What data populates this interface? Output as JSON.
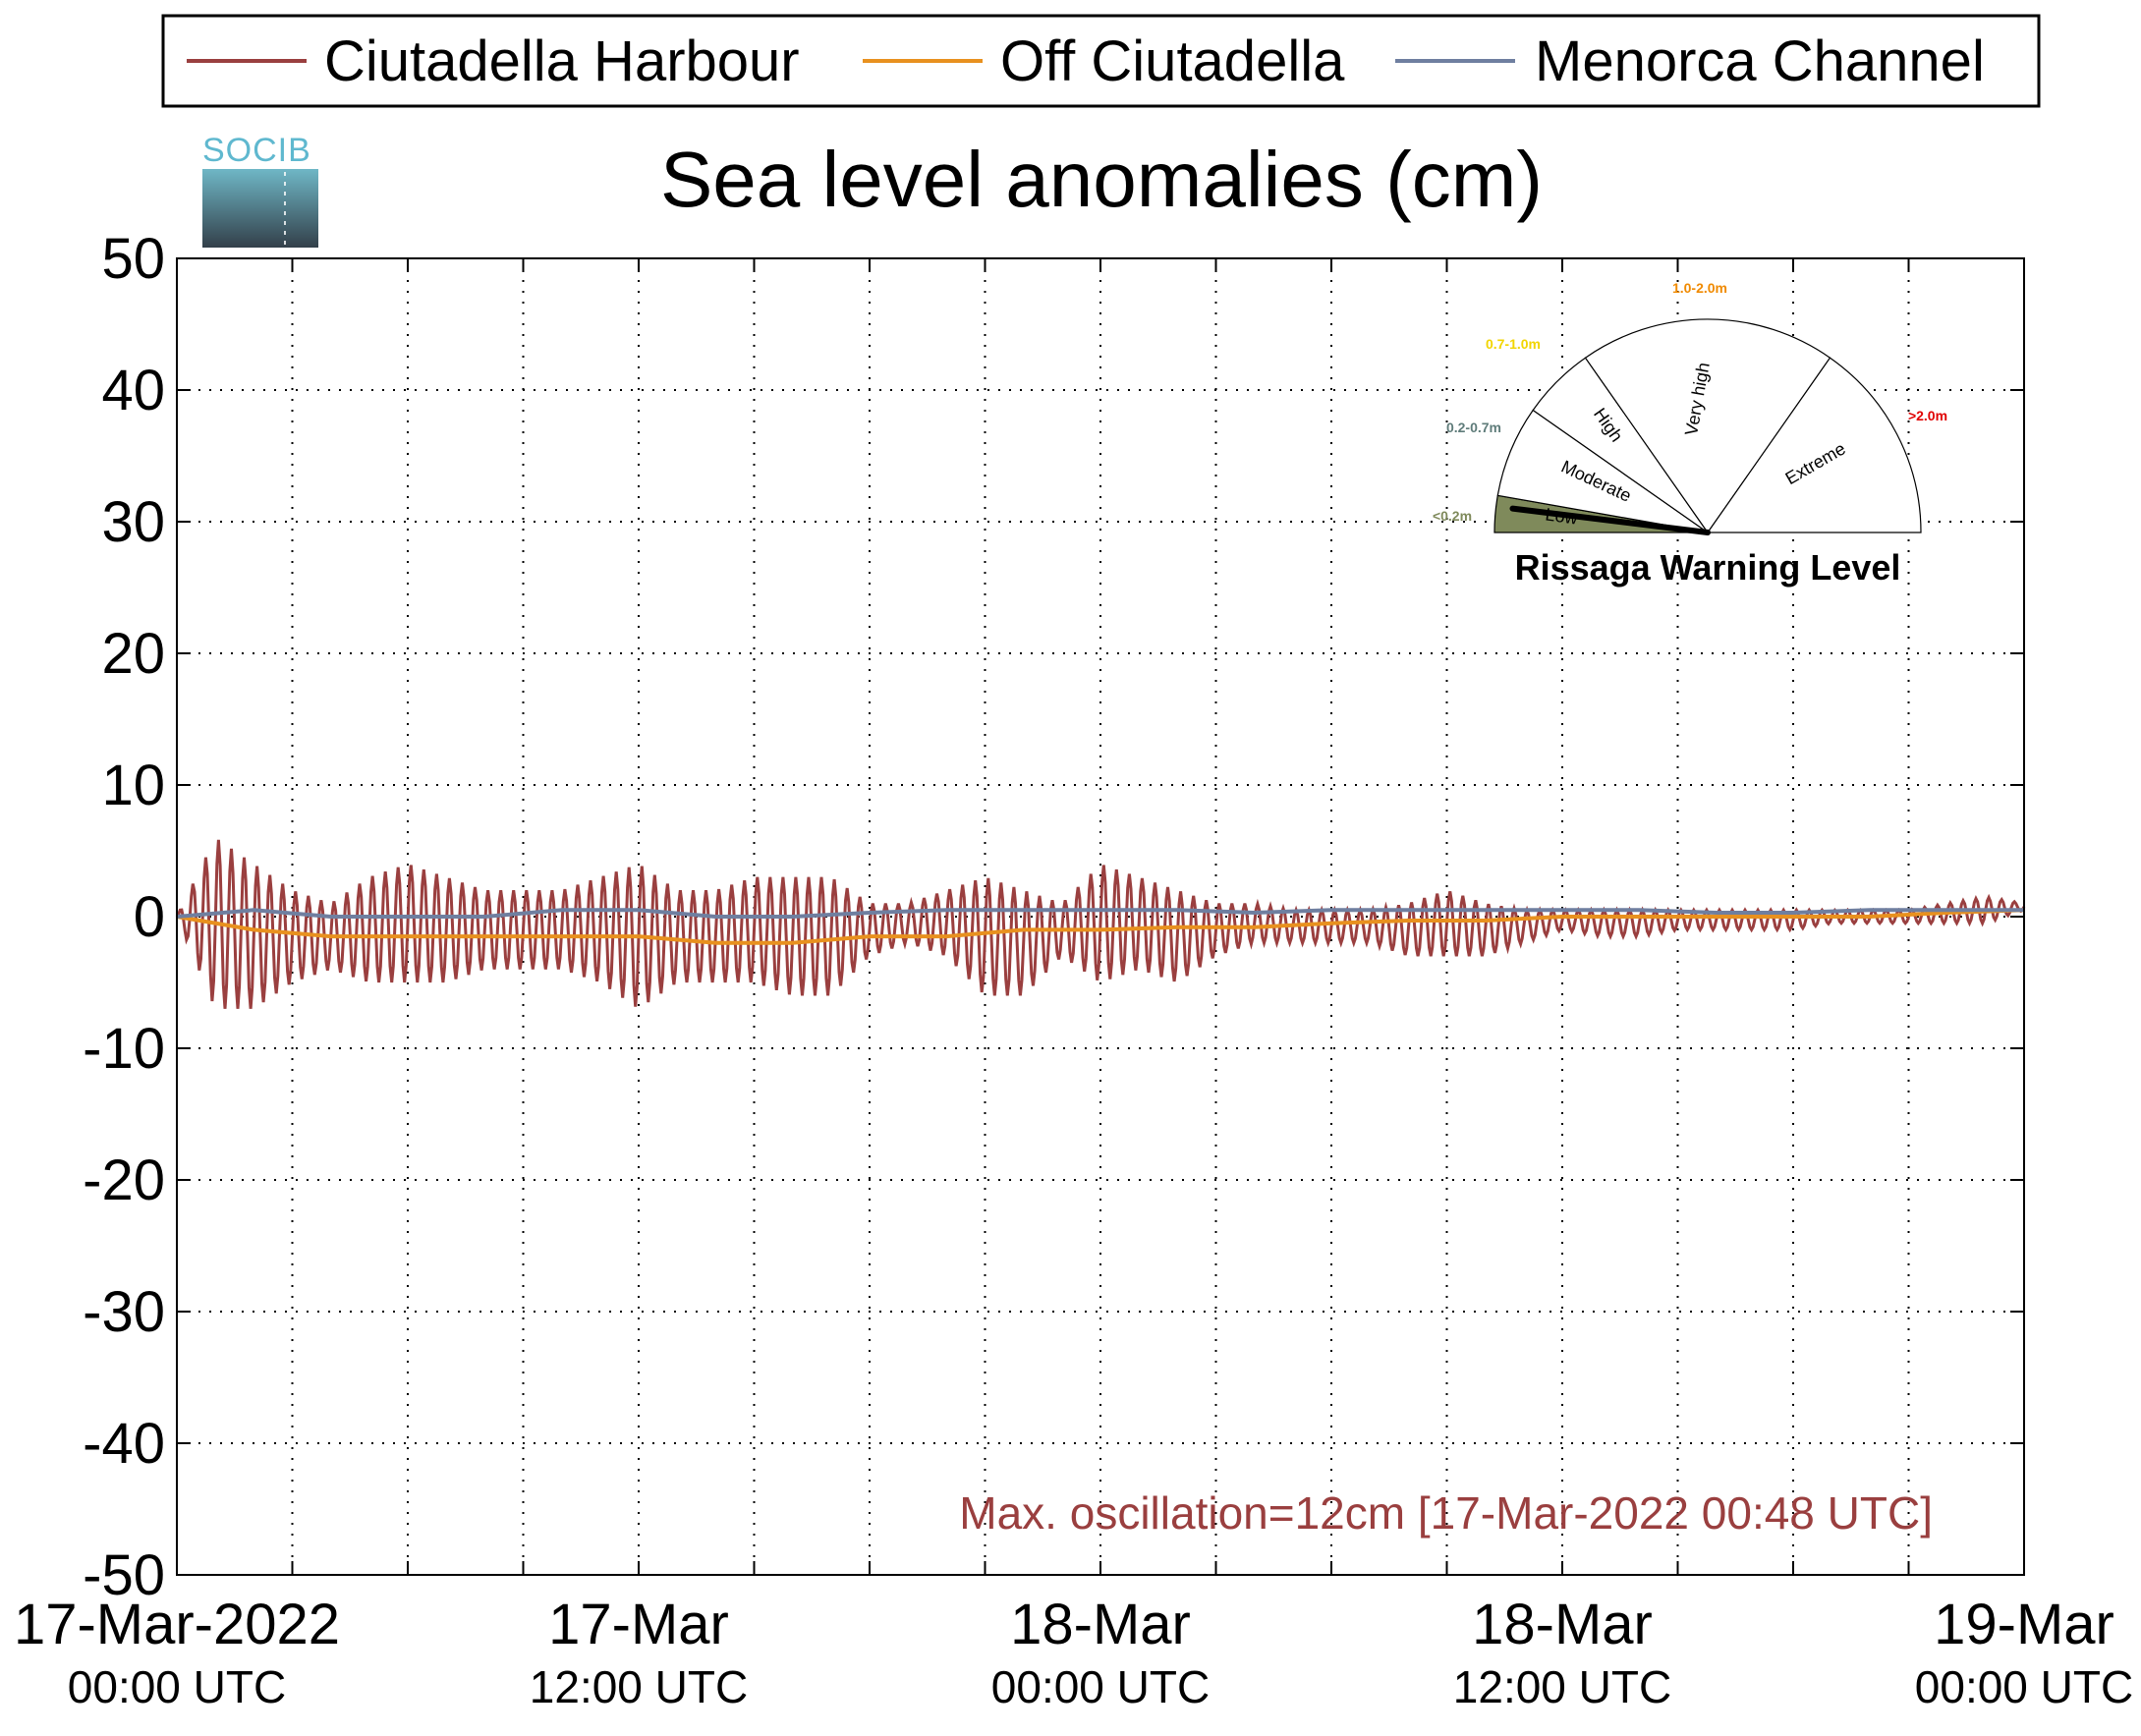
{
  "chart_data": {
    "type": "line",
    "title": "Sea level anomalies (cm)",
    "xlabel": "",
    "ylabel": "",
    "ylim": [
      -50,
      50
    ],
    "yticks": [
      50,
      40,
      30,
      20,
      10,
      0,
      -10,
      -20,
      -30,
      -40,
      -50
    ],
    "ytick_labels": [
      "50",
      "40",
      "30",
      "20",
      "10",
      "0",
      "-10",
      "-20",
      "-30",
      "-40",
      "-50"
    ],
    "xlim": [
      "2022-03-17 00:00",
      "2022-03-19 00:00"
    ],
    "x_major_ticks": [
      {
        "time": "2022-03-17 00:00",
        "line1": "17-Mar-2022",
        "line2": "00:00 UTC"
      },
      {
        "time": "2022-03-17 12:00",
        "line1": "17-Mar",
        "line2": "12:00 UTC"
      },
      {
        "time": "2022-03-18 00:00",
        "line1": "18-Mar",
        "line2": "00:00 UTC"
      },
      {
        "time": "2022-03-18 12:00",
        "line1": "18-Mar",
        "line2": "12:00 UTC"
      },
      {
        "time": "2022-03-19 00:00",
        "line1": "19-Mar",
        "line2": "00:00 UTC"
      }
    ],
    "grid": true,
    "legend_position": "top",
    "annotation": "Max. oscillation=12cm [17-Mar-2022 00:48 UTC]",
    "series": [
      {
        "name": "Ciutadella Harbour",
        "color": "#9a3f3f",
        "x": [
          "2022-03-17 00:00",
          "2022-03-17 01:00",
          "2022-03-17 02:00",
          "2022-03-17 03:00",
          "2022-03-17 04:00",
          "2022-03-17 05:00",
          "2022-03-17 06:00",
          "2022-03-17 07:00",
          "2022-03-17 08:00",
          "2022-03-17 09:00",
          "2022-03-17 10:00",
          "2022-03-17 11:00",
          "2022-03-17 12:00",
          "2022-03-17 13:00",
          "2022-03-17 14:00",
          "2022-03-17 15:00",
          "2022-03-17 16:00",
          "2022-03-17 17:00",
          "2022-03-17 18:00",
          "2022-03-17 19:00",
          "2022-03-17 20:00",
          "2022-03-17 21:00",
          "2022-03-17 22:00",
          "2022-03-17 23:00",
          "2022-03-18 00:00",
          "2022-03-18 01:00",
          "2022-03-18 02:00",
          "2022-03-18 03:00",
          "2022-03-18 04:00",
          "2022-03-18 05:00",
          "2022-03-18 06:00",
          "2022-03-18 07:00",
          "2022-03-18 08:00",
          "2022-03-18 09:00",
          "2022-03-18 10:00",
          "2022-03-18 11:00",
          "2022-03-18 12:00",
          "2022-03-18 13:00",
          "2022-03-18 14:00",
          "2022-03-18 15:00",
          "2022-03-18 16:00",
          "2022-03-18 17:00",
          "2022-03-18 18:00",
          "2022-03-18 19:00",
          "2022-03-18 20:00",
          "2022-03-18 21:00",
          "2022-03-18 22:00",
          "2022-03-18 23:00",
          "2022-03-19 00:00"
        ],
        "upper": [
          0,
          6,
          4,
          2,
          1,
          3,
          4,
          3,
          2,
          2,
          2,
          3,
          4,
          2,
          2,
          3,
          3,
          3,
          1,
          1,
          2,
          3,
          2,
          1,
          4,
          3,
          2,
          1,
          1,
          0.5,
          0.5,
          0.5,
          1,
          2,
          1,
          0.5,
          0.5,
          0.5,
          0.5,
          0.5,
          0.5,
          0.5,
          0.5,
          0.5,
          0.5,
          0.5,
          1,
          1.5,
          1
        ],
        "lower": [
          0,
          -7,
          -7,
          -5,
          -4,
          -5,
          -5,
          -5,
          -4,
          -4,
          -4,
          -5,
          -7,
          -5,
          -5,
          -5,
          -6,
          -6,
          -3,
          -2,
          -3,
          -6,
          -6,
          -3,
          -5,
          -4,
          -5,
          -3,
          -2,
          -2,
          -2,
          -2,
          -3,
          -3,
          -3,
          -2,
          -1,
          -1.5,
          -1.5,
          -1,
          -1,
          -1,
          -1,
          -0.5,
          -0.5,
          -0.5,
          -0.5,
          -0.5,
          0.5
        ]
      },
      {
        "name": "Off Ciutadella",
        "color": "#e8911f",
        "x": [
          "2022-03-17 00:00",
          "2022-03-17 02:00",
          "2022-03-17 04:00",
          "2022-03-17 06:00",
          "2022-03-17 08:00",
          "2022-03-17 10:00",
          "2022-03-17 12:00",
          "2022-03-17 14:00",
          "2022-03-17 16:00",
          "2022-03-17 18:00",
          "2022-03-17 20:00",
          "2022-03-17 22:00",
          "2022-03-18 00:00",
          "2022-03-18 02:00",
          "2022-03-18 04:00",
          "2022-03-18 06:00",
          "2022-03-18 08:00",
          "2022-03-18 10:00",
          "2022-03-18 12:00",
          "2022-03-18 14:00",
          "2022-03-18 16:00",
          "2022-03-18 18:00",
          "2022-03-18 20:00",
          "2022-03-18 22:00",
          "2022-03-19 00:00"
        ],
        "values": [
          0,
          -1,
          -1.5,
          -1.5,
          -1.5,
          -1.5,
          -1.5,
          -2,
          -2,
          -1.5,
          -1.5,
          -1,
          -1,
          -0.8,
          -0.8,
          -0.5,
          -0.3,
          -0.3,
          0,
          0,
          0,
          0,
          0,
          0.3,
          0.5
        ]
      },
      {
        "name": "Menorca Channel",
        "color": "#6f7fa0",
        "x": [
          "2022-03-17 00:00",
          "2022-03-17 02:00",
          "2022-03-17 04:00",
          "2022-03-17 06:00",
          "2022-03-17 08:00",
          "2022-03-17 10:00",
          "2022-03-17 12:00",
          "2022-03-17 14:00",
          "2022-03-17 16:00",
          "2022-03-17 18:00",
          "2022-03-17 20:00",
          "2022-03-17 22:00",
          "2022-03-18 00:00",
          "2022-03-18 02:00",
          "2022-03-18 04:00",
          "2022-03-18 06:00",
          "2022-03-18 08:00",
          "2022-03-18 10:00",
          "2022-03-18 12:00",
          "2022-03-18 14:00",
          "2022-03-18 16:00",
          "2022-03-18 18:00",
          "2022-03-18 20:00",
          "2022-03-18 22:00",
          "2022-03-19 00:00"
        ],
        "values": [
          0,
          0.5,
          0,
          0,
          0,
          0.5,
          0.5,
          0,
          0,
          0.3,
          0.5,
          0.5,
          0.5,
          0.5,
          0.3,
          0.5,
          0.5,
          0.5,
          0.5,
          0.5,
          0.3,
          0.3,
          0.5,
          0.5,
          0.5
        ]
      }
    ]
  },
  "logo": {
    "text": "SOCIB"
  },
  "gauge": {
    "title": "Rissaga Warning Level",
    "current_level": "Low",
    "sectors": [
      {
        "name": "Low",
        "range": "<0.2m",
        "range_color": "#7f8a5b",
        "fill": "#7f8a5b"
      },
      {
        "name": "Moderate",
        "range": "0.2-0.7m",
        "range_color": "#5f7c7a",
        "fill": "#ffffff"
      },
      {
        "name": "High",
        "range": "0.7-1.0m",
        "range_color": "#f2d500",
        "fill": "#ffffff"
      },
      {
        "name": "Very high",
        "range": "1.0-2.0m",
        "range_color": "#f08a00",
        "fill": "#ffffff"
      },
      {
        "name": "Extreme",
        "range": ">2.0m",
        "range_color": "#e00000",
        "fill": "#ffffff"
      }
    ]
  }
}
